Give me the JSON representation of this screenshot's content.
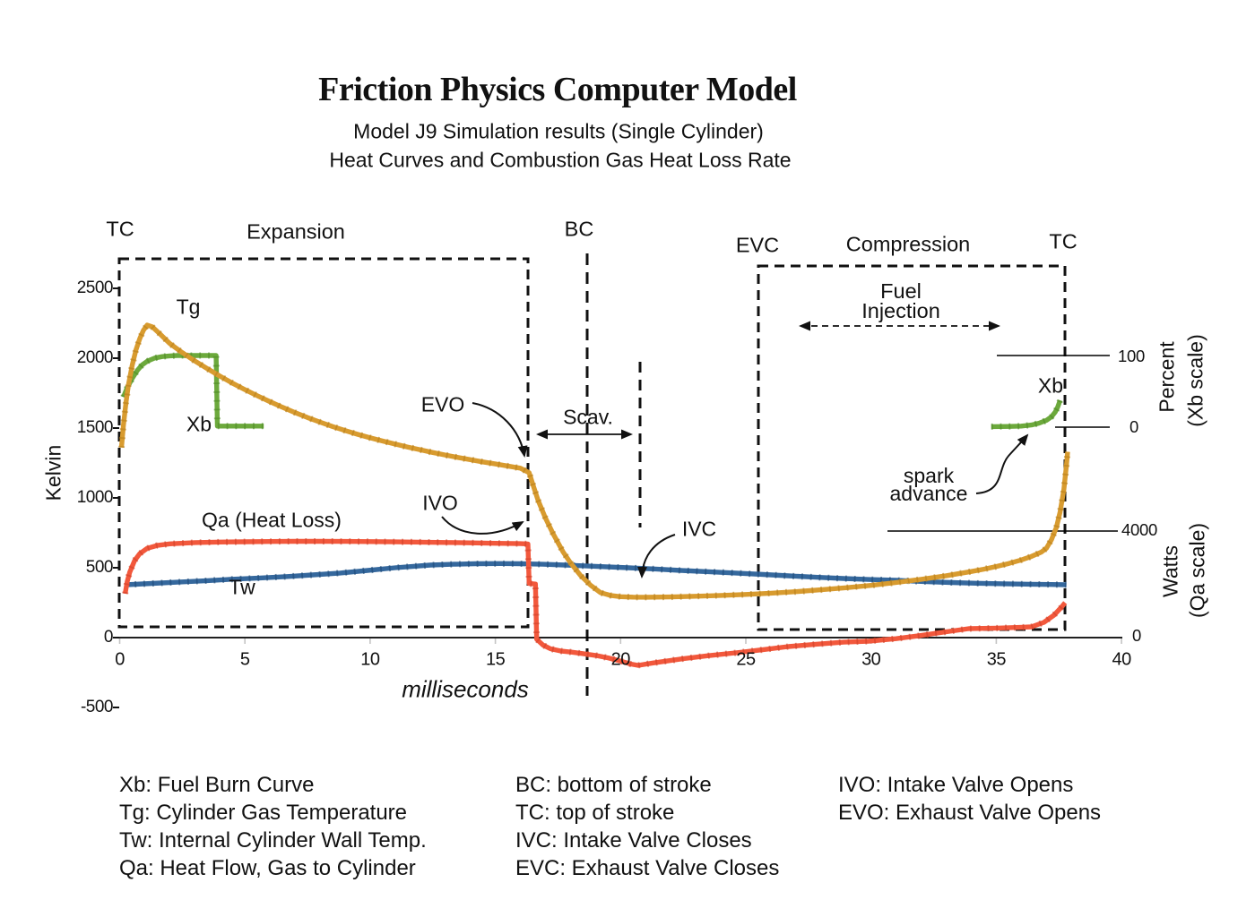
{
  "header": {
    "title": "Friction Physics Computer Model",
    "subtitle1": "Model J9 Simulation results (Single Cylinder)",
    "subtitle2": "Heat Curves and Combustion Gas Heat Loss Rate"
  },
  "annotations": {
    "tc_left": "TC",
    "expansion": "Expansion",
    "bc": "BC",
    "evc": "EVC",
    "compression": "Compression",
    "tc_right": "TC",
    "fuel_line1": "Fuel",
    "fuel_line2": "Injection",
    "evo": "EVO",
    "ivo": "IVO",
    "scav": "Scav.",
    "ivc": "IVC",
    "spark_line1": "spark",
    "spark_line2": "advance",
    "tg": "Tg",
    "xb_left": "Xb",
    "xb_right": "Xb",
    "qa": "Qa (Heat Loss)",
    "tw": "Tw"
  },
  "axes": {
    "left_label": "Kelvin",
    "x_label": "milliseconds",
    "right_percent_line1": "Percent",
    "right_percent_line2": "(Xb scale)",
    "right_watts_line1": "Watts",
    "right_watts_line2": "(Qa scale)",
    "rp100": "100",
    "rp0": "0",
    "rw4000": "4000",
    "rw0": "0"
  },
  "legend": {
    "col1": [
      "Xb: Fuel Burn Curve",
      "Tg: Cylinder Gas Temperature",
      "Tw: Internal Cylinder Wall Temp.",
      "Qa: Heat Flow, Gas to Cylinder"
    ],
    "col2": [
      "BC: bottom of stroke",
      "TC: top of stroke",
      "IVC: Intake Valve Closes",
      "EVC: Exhaust Valve Closes"
    ],
    "col3": [
      "IVO: Intake Valve Opens",
      "EVO: Exhaust Valve Opens"
    ]
  },
  "chart_data": {
    "type": "line",
    "title": "Friction Physics Computer Model",
    "x_axis": {
      "label": "milliseconds",
      "range": [
        0,
        40
      ],
      "ticks": [
        0,
        5,
        10,
        15,
        20,
        25,
        30,
        35,
        40
      ]
    },
    "y_axis_left": {
      "label": "Kelvin",
      "range": [
        -500,
        2500
      ],
      "ticks": [
        2500,
        2000,
        1500,
        1000,
        500,
        0,
        -500
      ]
    },
    "y_axis_right_percent": {
      "label": "Percent (Xb scale)",
      "ticks": [
        100,
        0
      ],
      "applies_to": "Xb"
    },
    "y_axis_right_watts": {
      "label": "Watts (Qa scale)",
      "ticks": [
        4000,
        0
      ],
      "applies_to": "Qa"
    },
    "events": {
      "TC": [
        0,
        38
      ],
      "EVO_ms": 16.3,
      "BC_ms": 18.7,
      "IVC_ms": 20.8,
      "EVC_ms": 25.5,
      "expansion_span_ms": [
        0,
        16.3
      ],
      "compression_span_ms": [
        25.5,
        37.7
      ],
      "fuel_injection_span_ms": [
        27.1,
        35.2
      ],
      "scavenging_span_ms": [
        16.6,
        20.5
      ]
    },
    "series": [
      {
        "name": "Tw",
        "legend": "Internal Cylinder Wall Temp.",
        "scale": "kelvin",
        "color": "#35689D",
        "tick_color": "#1e4a77",
        "points": [
          [
            0.25,
            378
          ],
          [
            1.3,
            388
          ],
          [
            2.4,
            398
          ],
          [
            3.5,
            408
          ],
          [
            4.5,
            418
          ],
          [
            5.6,
            427
          ],
          [
            6.7,
            437
          ],
          [
            7.7,
            449
          ],
          [
            8.8,
            462
          ],
          [
            9.9,
            481
          ],
          [
            11,
            500
          ],
          [
            12.4,
            519
          ],
          [
            13.3,
            525
          ],
          [
            14.2,
            529
          ],
          [
            15.2,
            530
          ],
          [
            16,
            529
          ],
          [
            16.9,
            525
          ],
          [
            17.8,
            519
          ],
          [
            19,
            510
          ],
          [
            20.3,
            500
          ],
          [
            21.4,
            491
          ],
          [
            22.4,
            481
          ],
          [
            23.5,
            472
          ],
          [
            24.6,
            462
          ],
          [
            25.7,
            452
          ],
          [
            26.7,
            442
          ],
          [
            27.8,
            432
          ],
          [
            28.9,
            423
          ],
          [
            29.9,
            416
          ],
          [
            31,
            410
          ],
          [
            32.1,
            401
          ],
          [
            33.2,
            394
          ],
          [
            34.2,
            389
          ],
          [
            35.3,
            385
          ],
          [
            36.4,
            382
          ],
          [
            37.2,
            380
          ],
          [
            37.8,
            378
          ]
        ]
      },
      {
        "name": "Qa",
        "legend": "Heat Flow, Gas to Cylinder",
        "scale": "watts",
        "color": "#F2583C",
        "tick_color": "#cf4129",
        "points": [
          [
            0.22,
            1650
          ],
          [
            0.3,
            2100
          ],
          [
            0.4,
            2450
          ],
          [
            0.6,
            2900
          ],
          [
            0.8,
            3150
          ],
          [
            1.1,
            3350
          ],
          [
            1.5,
            3460
          ],
          [
            2,
            3520
          ],
          [
            3,
            3565
          ],
          [
            4,
            3585
          ],
          [
            5,
            3598
          ],
          [
            6,
            3608
          ],
          [
            7,
            3612
          ],
          [
            8,
            3613
          ],
          [
            9,
            3610
          ],
          [
            10,
            3603
          ],
          [
            11,
            3594
          ],
          [
            12,
            3583
          ],
          [
            13,
            3570
          ],
          [
            14,
            3556
          ],
          [
            15,
            3541
          ],
          [
            16,
            3526
          ],
          [
            16.3,
            3516
          ],
          [
            16.35,
            2030
          ],
          [
            16.6,
            2010
          ],
          [
            16.65,
            -60
          ],
          [
            16.9,
            -280
          ],
          [
            17.2,
            -420
          ],
          [
            17.6,
            -500
          ],
          [
            18,
            -540
          ],
          [
            18.5,
            -600
          ],
          [
            19,
            -670
          ],
          [
            19.5,
            -760
          ],
          [
            20,
            -880
          ],
          [
            20.4,
            -990
          ],
          [
            20.7,
            -1042
          ],
          [
            21.3,
            -950
          ],
          [
            22.4,
            -805
          ],
          [
            23.5,
            -680
          ],
          [
            24.6,
            -570
          ],
          [
            25.7,
            -450
          ],
          [
            26.7,
            -335
          ],
          [
            27.8,
            -250
          ],
          [
            28.9,
            -170
          ],
          [
            29.9,
            -135
          ],
          [
            31,
            -40
          ],
          [
            32,
            80
          ],
          [
            33,
            220
          ],
          [
            33.9,
            335
          ],
          [
            35,
            355
          ],
          [
            35.8,
            380
          ],
          [
            36.4,
            405
          ],
          [
            36.9,
            570
          ],
          [
            37.3,
            840
          ],
          [
            37.6,
            1140
          ],
          [
            37.75,
            1310
          ]
        ]
      },
      {
        "name": "Xb_pre",
        "legend": "Fuel Burn Curve",
        "scale": "percent",
        "color": "#6CA93C",
        "tick_color": "#4e8a26",
        "points": [
          [
            0.15,
            42
          ],
          [
            0.3,
            55
          ],
          [
            0.5,
            68
          ],
          [
            0.7,
            79
          ],
          [
            0.9,
            87
          ],
          [
            1.1,
            92
          ],
          [
            1.4,
            96.5
          ],
          [
            1.7,
            98.5
          ],
          [
            2,
            99.5
          ],
          [
            2.3,
            100
          ],
          [
            3.85,
            100
          ],
          [
            3.9,
            1.5
          ],
          [
            5.75,
            1.5
          ]
        ]
      },
      {
        "name": "Xb_post",
        "legend": "Fuel Burn Curve",
        "scale": "percent",
        "color": "#6CA93C",
        "tick_color": "#4e8a26",
        "points": [
          [
            34.8,
            0.8
          ],
          [
            35.5,
            1
          ],
          [
            36,
            1.5
          ],
          [
            36.4,
            3
          ],
          [
            36.7,
            5.5
          ],
          [
            37,
            9.5
          ],
          [
            37.2,
            14.5
          ],
          [
            37.35,
            21
          ],
          [
            37.45,
            28
          ],
          [
            37.55,
            37.5
          ]
        ]
      },
      {
        "name": "Tg",
        "legend": "Cylinder Gas Temperature",
        "scale": "kelvin",
        "color": "#D89B2F",
        "tick_color": "#b87f1c",
        "points": [
          [
            0.07,
            1360
          ],
          [
            0.15,
            1520
          ],
          [
            0.25,
            1680
          ],
          [
            0.35,
            1810
          ],
          [
            0.5,
            1950
          ],
          [
            0.65,
            2060
          ],
          [
            0.8,
            2140
          ],
          [
            0.95,
            2200
          ],
          [
            1.1,
            2237
          ],
          [
            1.3,
            2225
          ],
          [
            1.6,
            2175
          ],
          [
            2,
            2105
          ],
          [
            2.5,
            2040
          ],
          [
            3,
            1980
          ],
          [
            3.5,
            1925
          ],
          [
            4,
            1872
          ],
          [
            4.5,
            1822
          ],
          [
            5,
            1775
          ],
          [
            5.5,
            1731
          ],
          [
            6,
            1689
          ],
          [
            6.5,
            1649
          ],
          [
            7,
            1611
          ],
          [
            7.5,
            1575
          ],
          [
            8,
            1542
          ],
          [
            8.5,
            1511
          ],
          [
            9,
            1482
          ],
          [
            9.5,
            1455
          ],
          [
            10,
            1430
          ],
          [
            10.5,
            1407
          ],
          [
            11,
            1385
          ],
          [
            11.5,
            1364
          ],
          [
            12,
            1344
          ],
          [
            12.5,
            1325
          ],
          [
            13,
            1307
          ],
          [
            13.5,
            1290
          ],
          [
            14,
            1274
          ],
          [
            14.5,
            1258
          ],
          [
            15,
            1243
          ],
          [
            15.5,
            1228
          ],
          [
            16,
            1213
          ],
          [
            16.35,
            1180
          ],
          [
            16.5,
            1095
          ],
          [
            16.7,
            985
          ],
          [
            17,
            855
          ],
          [
            17.3,
            745
          ],
          [
            17.7,
            615
          ],
          [
            18,
            535
          ],
          [
            18.4,
            445
          ],
          [
            18.8,
            375
          ],
          [
            19.2,
            322
          ],
          [
            19.6,
            302
          ],
          [
            20,
            293
          ],
          [
            20.5,
            290
          ],
          [
            21,
            289
          ],
          [
            22,
            291
          ],
          [
            23,
            296
          ],
          [
            24,
            302
          ],
          [
            25,
            309
          ],
          [
            26,
            318
          ],
          [
            27,
            329
          ],
          [
            28,
            342
          ],
          [
            29,
            357
          ],
          [
            30,
            374
          ],
          [
            31,
            394
          ],
          [
            32,
            417
          ],
          [
            33,
            443
          ],
          [
            34,
            473
          ],
          [
            34.5,
            490
          ],
          [
            35,
            509
          ],
          [
            35.5,
            531
          ],
          [
            36,
            556
          ],
          [
            36.4,
            581
          ],
          [
            36.8,
            612
          ],
          [
            37,
            640
          ],
          [
            37.2,
            700
          ],
          [
            37.4,
            790
          ],
          [
            37.55,
            900
          ],
          [
            37.7,
            1060
          ],
          [
            37.8,
            1230
          ],
          [
            37.85,
            1330
          ]
        ]
      }
    ]
  }
}
